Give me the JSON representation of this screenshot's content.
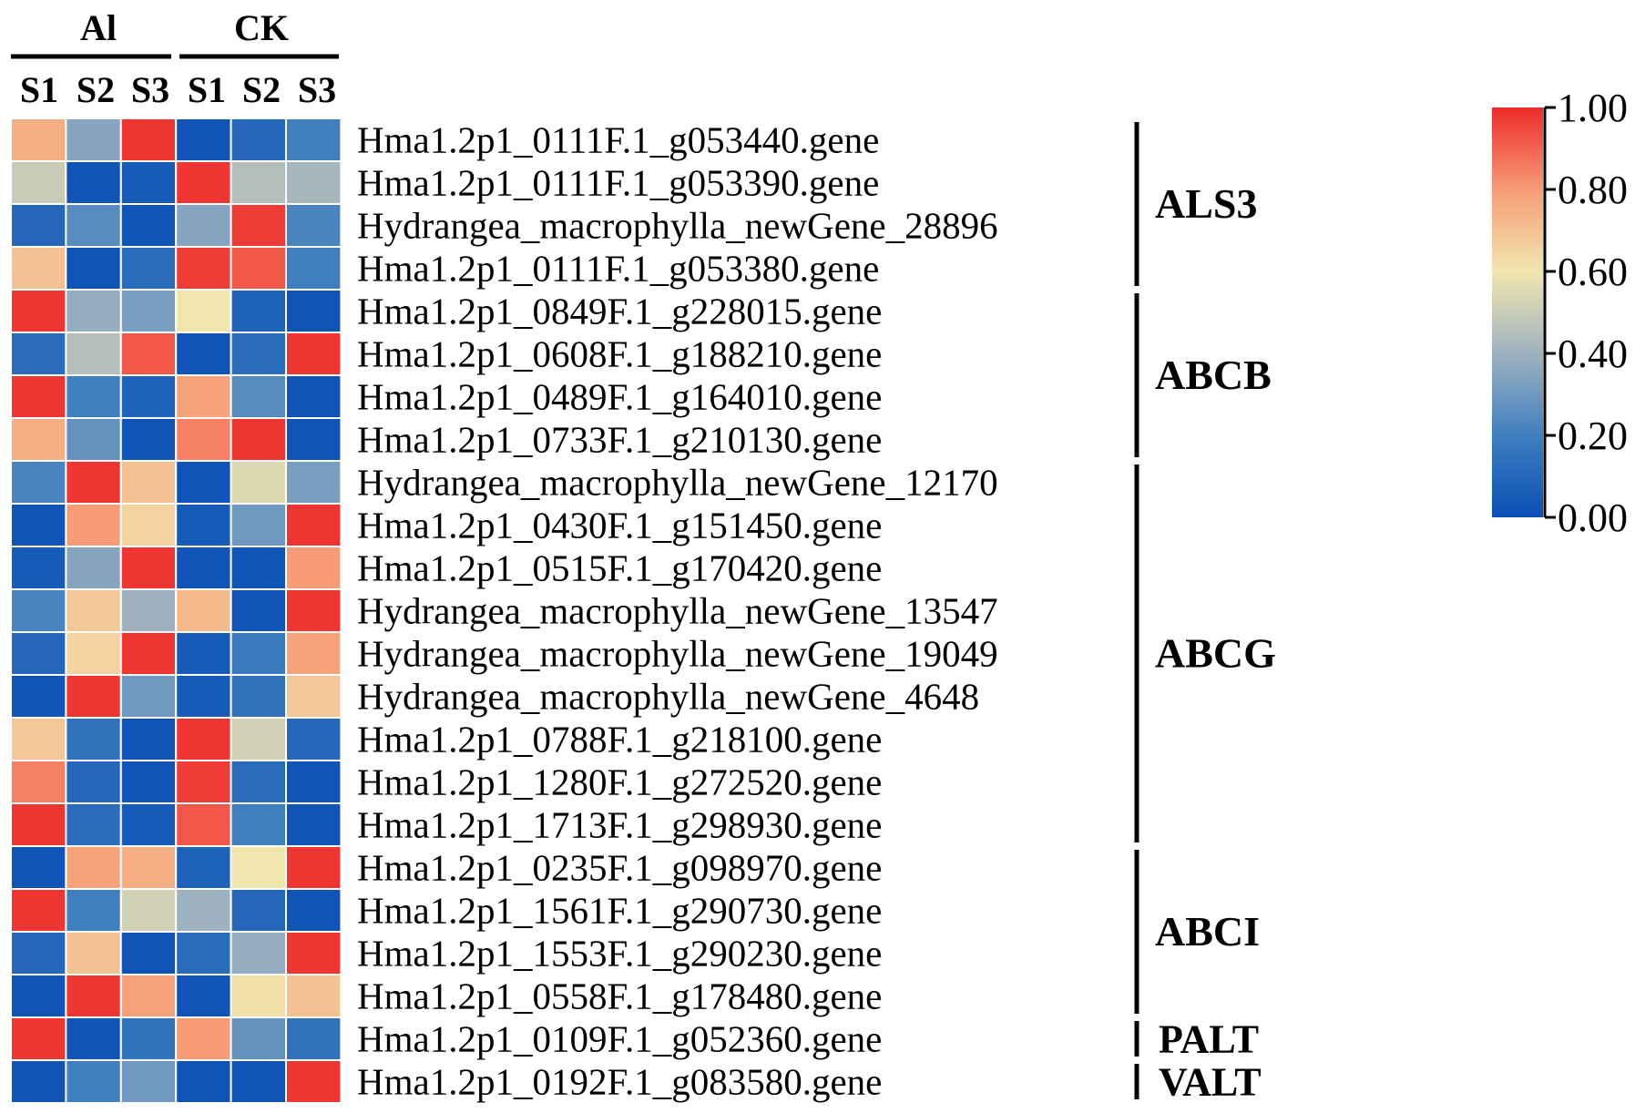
{
  "chart_data": {
    "type": "heatmap",
    "groups": [
      {
        "label": "Al",
        "samples": [
          "S1",
          "S2",
          "S3"
        ]
      },
      {
        "label": "CK",
        "samples": [
          "S1",
          "S2",
          "S3"
        ]
      }
    ],
    "columns": [
      "Al S1",
      "Al S2",
      "Al S3",
      "CK S1",
      "CK S2",
      "CK S3"
    ],
    "rows": [
      "Hma1.2p1_0111F.1_g053440.gene",
      "Hma1.2p1_0111F.1_g053390.gene",
      "Hydrangea_macrophylla_newGene_28896",
      "Hma1.2p1_0111F.1_g053380.gene",
      "Hma1.2p1_0849F.1_g228015.gene",
      "Hma1.2p1_0608F.1_g188210.gene",
      "Hma1.2p1_0489F.1_g164010.gene",
      "Hma1.2p1_0733F.1_g210130.gene",
      "Hydrangea_macrophylla_newGene_12170",
      "Hma1.2p1_0430F.1_g151450.gene",
      "Hma1.2p1_0515F.1_g170420.gene",
      "Hydrangea_macrophylla_newGene_13547",
      "Hydrangea_macrophylla_newGene_19049",
      "Hydrangea_macrophylla_newGene_4648",
      "Hma1.2p1_0788F.1_g218100.gene",
      "Hma1.2p1_1280F.1_g272520.gene",
      "Hma1.2p1_1713F.1_g298930.gene",
      "Hma1.2p1_0235F.1_g098970.gene",
      "Hma1.2p1_1561F.1_g290730.gene",
      "Hma1.2p1_1553F.1_g290230.gene",
      "Hma1.2p1_0558F.1_g178480.gene",
      "Hma1.2p1_0109F.1_g052360.gene",
      "Hma1.2p1_0192F.1_g083580.gene"
    ],
    "values": [
      [
        0.75,
        0.35,
        0.98,
        0.02,
        0.1,
        0.2
      ],
      [
        0.5,
        0.02,
        0.05,
        0.98,
        0.45,
        0.42
      ],
      [
        0.1,
        0.25,
        0.02,
        0.35,
        0.97,
        0.22
      ],
      [
        0.7,
        0.02,
        0.12,
        0.97,
        0.92,
        0.2
      ],
      [
        0.98,
        0.38,
        0.32,
        0.6,
        0.08,
        0.02
      ],
      [
        0.12,
        0.45,
        0.92,
        0.02,
        0.12,
        0.98
      ],
      [
        0.98,
        0.2,
        0.08,
        0.78,
        0.25,
        0.02
      ],
      [
        0.75,
        0.28,
        0.02,
        0.85,
        0.98,
        0.02
      ],
      [
        0.22,
        0.98,
        0.7,
        0.02,
        0.55,
        0.32
      ],
      [
        0.02,
        0.8,
        0.65,
        0.05,
        0.3,
        0.98
      ],
      [
        0.05,
        0.35,
        0.98,
        0.02,
        0.02,
        0.8
      ],
      [
        0.22,
        0.68,
        0.4,
        0.72,
        0.02,
        0.98
      ],
      [
        0.1,
        0.65,
        0.98,
        0.05,
        0.18,
        0.78
      ],
      [
        0.02,
        0.98,
        0.3,
        0.05,
        0.15,
        0.68
      ],
      [
        0.68,
        0.15,
        0.02,
        0.98,
        0.52,
        0.1
      ],
      [
        0.85,
        0.1,
        0.02,
        0.97,
        0.12,
        0.02
      ],
      [
        0.98,
        0.12,
        0.05,
        0.92,
        0.2,
        0.02
      ],
      [
        0.02,
        0.78,
        0.75,
        0.08,
        0.6,
        0.98
      ],
      [
        0.98,
        0.2,
        0.52,
        0.4,
        0.1,
        0.02
      ],
      [
        0.1,
        0.7,
        0.02,
        0.12,
        0.38,
        0.98
      ],
      [
        0.02,
        0.98,
        0.78,
        0.02,
        0.62,
        0.7
      ],
      [
        0.98,
        0.02,
        0.15,
        0.8,
        0.28,
        0.15
      ],
      [
        0.02,
        0.2,
        0.3,
        0.02,
        0.02,
        0.98
      ]
    ],
    "families": [
      {
        "label": "ALS3",
        "start_row": 0,
        "end_row": 3
      },
      {
        "label": "ABCB",
        "start_row": 4,
        "end_row": 7
      },
      {
        "label": "ABCG",
        "start_row": 8,
        "end_row": 16
      },
      {
        "label": "ABCI",
        "start_row": 17,
        "end_row": 20
      },
      {
        "label": "PALT",
        "start_row": 21,
        "end_row": 21
      },
      {
        "label": "VALT",
        "start_row": 22,
        "end_row": 22
      }
    ],
    "colorbar": {
      "min": 0.0,
      "max": 1.0,
      "ticks": [
        "0.00",
        "0.20",
        "0.40",
        "0.60",
        "0.80",
        "1.00"
      ],
      "colors": [
        "#0a4fb5",
        "#3f7fc0",
        "#9fb2c0",
        "#f1e6ae",
        "#f79c76",
        "#ee2b2b"
      ]
    }
  }
}
